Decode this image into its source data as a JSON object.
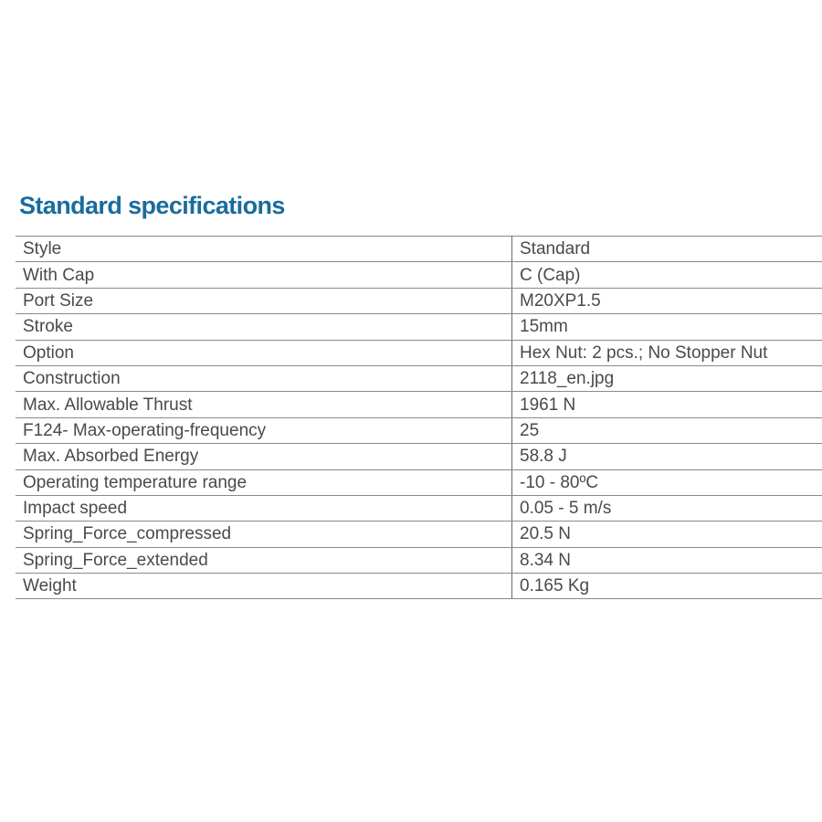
{
  "title": "Standard specifications",
  "colors": {
    "title": "#1a6c9c",
    "text": "#4a4a4a",
    "border": "#8a8a8a"
  },
  "rows": [
    {
      "label": "Style",
      "value": "Standard"
    },
    {
      "label": "With Cap",
      "value": "C (Cap)"
    },
    {
      "label": "Port Size",
      "value": "M20XP1.5"
    },
    {
      "label": "Stroke",
      "value": "15mm"
    },
    {
      "label": "Option",
      "value": "Hex Nut: 2 pcs.; No Stopper Nut"
    },
    {
      "label": "Construction",
      "value": "2118_en.jpg"
    },
    {
      "label": "Max. Allowable Thrust",
      "value": "1961 N"
    },
    {
      "label": "F124- Max-operating-frequency",
      "value": "25"
    },
    {
      "label": "Max. Absorbed Energy",
      "value": "58.8 J"
    },
    {
      "label": "Operating temperature range",
      "value": "-10 - 80ºC"
    },
    {
      "label": "Impact speed",
      "value": "0.05 - 5 m/s"
    },
    {
      "label": "Spring_Force_compressed",
      "value": "20.5 N"
    },
    {
      "label": "Spring_Force_extended",
      "value": "8.34 N"
    },
    {
      "label": "Weight",
      "value": "0.165 Kg"
    }
  ]
}
